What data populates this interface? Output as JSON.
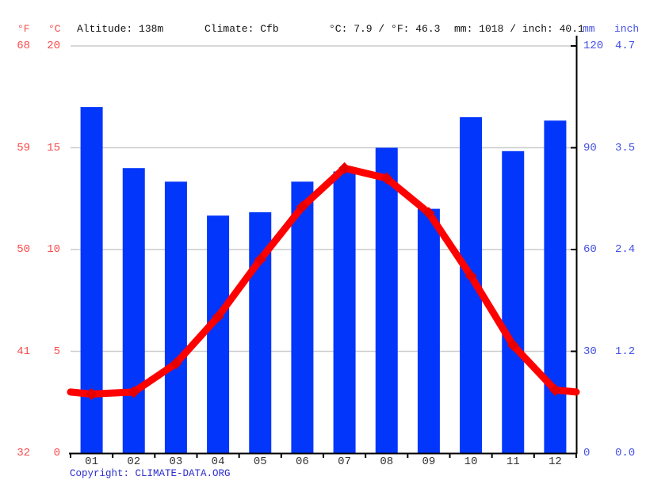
{
  "header": {
    "fahrenheit_unit": "°F",
    "celsius_unit": "°C",
    "altitude": "Altitude: 138m",
    "climate": "Climate: Cfb",
    "temperature_summary": "°C: 7.9 / °F: 46.3",
    "precipitation_summary": "mm: 1018 / inch: 40.1",
    "mm_unit": "mm",
    "inch_unit": "inch"
  },
  "chart_data": {
    "type": "bar",
    "subtype": "climate-graph: monthly precipitation bars + mean temperature line",
    "categories": [
      "01",
      "02",
      "03",
      "04",
      "05",
      "06",
      "07",
      "08",
      "09",
      "10",
      "11",
      "12"
    ],
    "series": [
      {
        "name": "Precipitation (mm)",
        "type": "bar",
        "values": [
          102,
          84,
          80,
          70,
          71,
          80,
          83,
          90,
          72,
          99,
          89,
          98
        ]
      },
      {
        "name": "Temperature (°C)",
        "type": "line",
        "values": [
          2.9,
          3.0,
          4.4,
          6.7,
          9.5,
          12.1,
          14.0,
          13.5,
          11.8,
          8.7,
          5.3,
          3.1
        ]
      }
    ],
    "left_axis": {
      "fahrenheit_ticks": [
        "68",
        "59",
        "50",
        "41",
        "32"
      ],
      "celsius_ticks": [
        "20",
        "15",
        "10",
        "5",
        "0"
      ],
      "celsius_range": [
        0,
        20
      ]
    },
    "right_axis": {
      "mm_ticks": [
        "120",
        "90",
        "60",
        "30",
        "0"
      ],
      "inch_ticks": [
        "4.7",
        "3.5",
        "2.4",
        "1.2",
        "0.0"
      ],
      "mm_range": [
        0,
        120
      ]
    },
    "grid": "horizontal",
    "legend_position": "none"
  },
  "footer": {
    "copyright": "Copyright: CLIMATE-DATA.ORG"
  },
  "colors": {
    "bar": "#0336fb",
    "temperature_line": "#ff0000",
    "temperature_marker": "#e60000",
    "left_axis_text": "#fa4b4b",
    "right_axis_text": "#4450e6",
    "month_text": "#333333",
    "header_text": "#111111",
    "copyright_text": "#2c2ccd",
    "gridline": "#cccccc",
    "axis_line": "#000000"
  }
}
